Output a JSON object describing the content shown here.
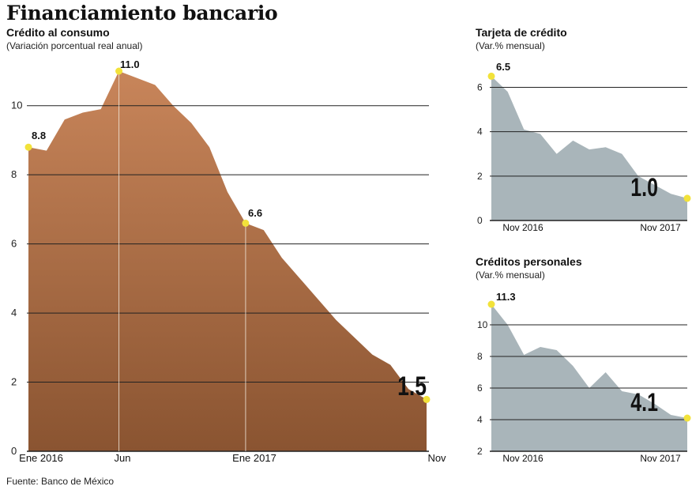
{
  "page": {
    "title": "Financiamiento bancario",
    "source": "Fuente: Banco de México"
  },
  "chart_data": [
    {
      "type": "area",
      "title": "Crédito al consumo",
      "subtitle": "(Variación porcentual real anual)",
      "x_ticks": [
        "Ene 2016",
        "Jun",
        "Ene 2017",
        "Nov"
      ],
      "y_ticks": [
        "0",
        "2",
        "4",
        "6",
        "8",
        "10"
      ],
      "ylim": [
        0,
        11
      ],
      "x": [
        0,
        1,
        2,
        3,
        4,
        5,
        6,
        7,
        8,
        9,
        10,
        11,
        12,
        13,
        14,
        15,
        16,
        17,
        18,
        19,
        20,
        21,
        22
      ],
      "values": [
        8.8,
        8.7,
        9.6,
        9.8,
        9.9,
        11.0,
        10.8,
        10.6,
        10.0,
        9.5,
        8.8,
        7.5,
        6.6,
        6.4,
        5.6,
        5.0,
        4.4,
        3.8,
        3.3,
        2.8,
        2.5,
        1.8,
        1.5
      ],
      "annotations": [
        {
          "x": 0,
          "y": 8.8,
          "label": "8.8"
        },
        {
          "x": 5,
          "y": 11.0,
          "label": "11.0"
        },
        {
          "x": 12,
          "y": 6.6,
          "label": "6.6"
        },
        {
          "x": 22,
          "y": 1.5,
          "label": "1.5"
        }
      ],
      "grid": true
    },
    {
      "type": "area",
      "title": "Tarjeta de crédito",
      "subtitle": "(Var.% mensual)",
      "x_ticks": [
        "Nov 2016",
        "Nov 2017"
      ],
      "y_ticks": [
        "0",
        "2",
        "4",
        "6"
      ],
      "ylim": [
        0,
        6.8
      ],
      "x": [
        0,
        1,
        2,
        3,
        4,
        5,
        6,
        7,
        8,
        9,
        10,
        11,
        12
      ],
      "values": [
        6.5,
        5.8,
        4.1,
        3.9,
        3.0,
        3.6,
        3.2,
        3.3,
        3.0,
        2.0,
        1.6,
        1.2,
        1.0
      ],
      "annotations": [
        {
          "x": 0,
          "y": 6.5,
          "label": "6.5"
        },
        {
          "x": 12,
          "y": 1.0,
          "label": "1.0"
        }
      ],
      "grid": true
    },
    {
      "type": "area",
      "title": "Créditos personales",
      "subtitle": "(Var.% mensual)",
      "x_ticks": [
        "Nov 2016",
        "Nov 2017"
      ],
      "y_ticks": [
        "2",
        "4",
        "6",
        "8",
        "10"
      ],
      "ylim": [
        2,
        11.8
      ],
      "x": [
        0,
        1,
        2,
        3,
        4,
        5,
        6,
        7,
        8,
        9,
        10,
        11,
        12
      ],
      "values": [
        11.3,
        10.0,
        8.1,
        8.6,
        8.4,
        7.4,
        6.0,
        7.0,
        5.8,
        5.6,
        5.0,
        4.3,
        4.1
      ],
      "annotations": [
        {
          "x": 0,
          "y": 11.3,
          "label": "11.3"
        },
        {
          "x": 12,
          "y": 4.1,
          "label": "4.1"
        }
      ],
      "grid": true
    }
  ],
  "colors": {
    "main_area_top": "#c8855a",
    "main_area_bottom": "#8a5431",
    "small_area": "#a9b5ba",
    "grid": "#222222",
    "marker": "#f2e23a"
  }
}
